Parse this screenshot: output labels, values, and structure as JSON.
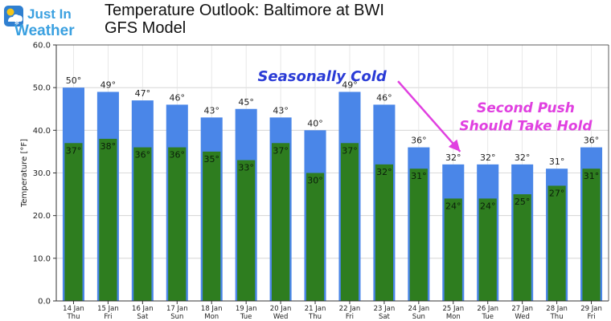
{
  "logo": {
    "line1": "Just In",
    "line2": "Weather",
    "icon": "sun-cloud-snowflake-icon",
    "colors": {
      "text": "#3aa0e0",
      "badge": "#2f7fd0",
      "sun": "#f5c518"
    }
  },
  "title": {
    "line1": "Temperature Outlook: Baltimore at BWI",
    "line2": "GFS Model"
  },
  "chart_data": {
    "type": "bar",
    "title": "Temperature Outlook: Baltimore at BWI",
    "subtitle": "GFS Model",
    "xlabel": "",
    "ylabel": "Temperature [°F]",
    "ylim": [
      0,
      60
    ],
    "yticks": [
      "0.0",
      "10.0",
      "20.0",
      "30.0",
      "40.0",
      "50.0",
      "60.0"
    ],
    "categories": [
      {
        "date": "14 Jan",
        "day": "Thu"
      },
      {
        "date": "15 Jan",
        "day": "Fri"
      },
      {
        "date": "16 Jan",
        "day": "Sat"
      },
      {
        "date": "17 Jan",
        "day": "Sun"
      },
      {
        "date": "18 Jan",
        "day": "Mon"
      },
      {
        "date": "19 Jan",
        "day": "Tue"
      },
      {
        "date": "20 Jan",
        "day": "Wed"
      },
      {
        "date": "21 Jan",
        "day": "Thu"
      },
      {
        "date": "22 Jan",
        "day": "Fri"
      },
      {
        "date": "23 Jan",
        "day": "Sat"
      },
      {
        "date": "24 Jan",
        "day": "Sun"
      },
      {
        "date": "25 Jan",
        "day": "Mon"
      },
      {
        "date": "26 Jan",
        "day": "Tue"
      },
      {
        "date": "27 Jan",
        "day": "Wed"
      },
      {
        "date": "28 Jan",
        "day": "Thu"
      },
      {
        "date": "29 Jan",
        "day": "Fri"
      }
    ],
    "series": [
      {
        "values": [
          50,
          49,
          47,
          46,
          43,
          45,
          43,
          40,
          49,
          46,
          36,
          32,
          32,
          32,
          31,
          36
        ],
        "color": "#4a86e8"
      },
      {
        "values": [
          37,
          38,
          36,
          36,
          35,
          33,
          37,
          30,
          37,
          32,
          31,
          24,
          24,
          25,
          27,
          31
        ],
        "color": "#2e7d1f"
      }
    ],
    "value_suffix": "°",
    "grid": true,
    "legend": "none",
    "annotations": [
      {
        "text": "Seasonally Cold",
        "color": "#2a3bd6"
      },
      {
        "text": "Second Push",
        "color": "#e040e0"
      },
      {
        "text": "Should Take Hold",
        "color": "#e040e0"
      }
    ],
    "arrow": {
      "color": "#e040e0",
      "from": {
        "x_index": 9.4,
        "y": 51.5
      },
      "to": {
        "x_index": 11.2,
        "y": 35.0
      }
    }
  }
}
